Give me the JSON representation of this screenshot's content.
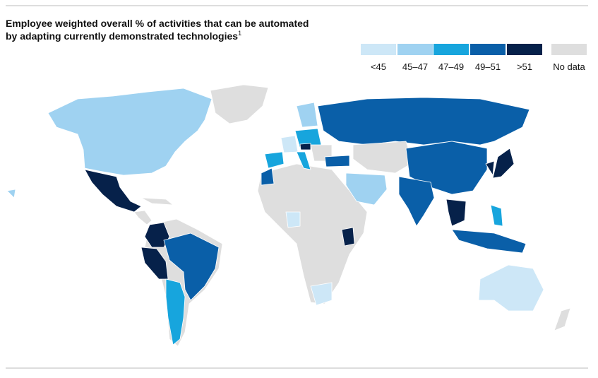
{
  "header": {
    "title_lines": [
      "Employee weighted overall % of activities that can be automated",
      "by adapting currently demonstrated technologies"
    ],
    "footnote_mark": "1"
  },
  "legend": {
    "items": [
      {
        "label": "<45",
        "color": "#cde7f7"
      },
      {
        "label": "45–47",
        "color": "#9fd2f1"
      },
      {
        "label": "47–49",
        "color": "#17a5dd"
      },
      {
        "label": "49–51",
        "color": "#0a5fa8"
      },
      {
        "label": ">51",
        "color": "#06214a"
      },
      {
        "label": "No data",
        "color": "#dedede"
      }
    ]
  }
}
